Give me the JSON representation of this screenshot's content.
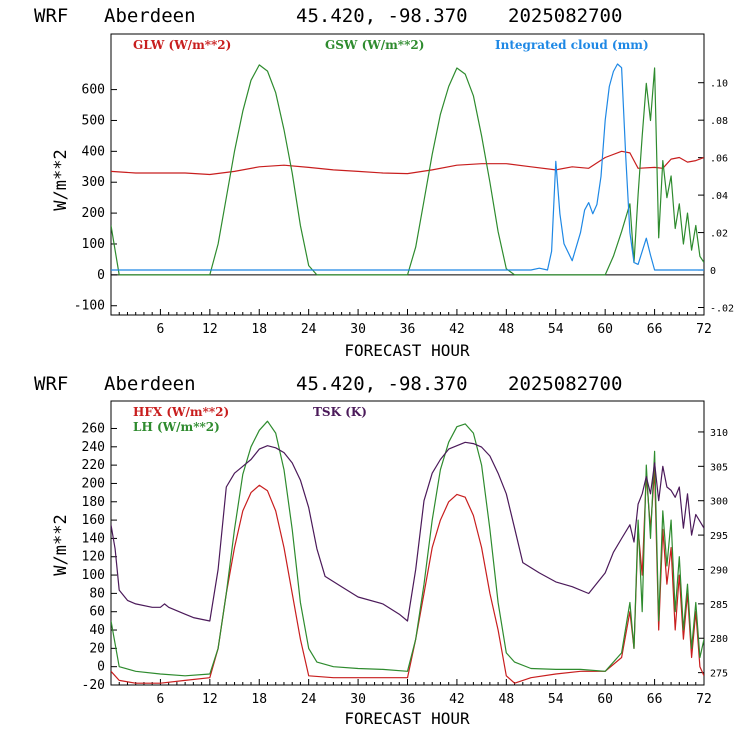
{
  "header": {
    "model": "WRF",
    "station": "Aberdeen",
    "coords": "45.420, -98.370",
    "init": "2025082700"
  },
  "colors": {
    "red": "#c81e1e",
    "green": "#2e8b2e",
    "blue": "#1e88e5",
    "purple": "#4b1a5a"
  },
  "chart_data": [
    {
      "type": "line",
      "xlabel": "FORECAST HOUR",
      "ylabel": "W/m**2",
      "xlim": [
        0,
        72
      ],
      "ylim": [
        -130,
        780
      ],
      "y2lim": [
        -0.024,
        0.126
      ],
      "xticks": [
        "6",
        "12",
        "18",
        "24",
        "30",
        "36",
        "42",
        "48",
        "54",
        "60",
        "66",
        "72"
      ],
      "yticks": [
        "-100",
        "0",
        "100",
        "200",
        "300",
        "400",
        "500",
        "600"
      ],
      "y2ticks": [
        "-.02",
        "0",
        ".02",
        ".04",
        ".06",
        ".08",
        ".10"
      ],
      "legend": [
        "GLW (W/m**2)",
        "GSW (W/m**2)",
        "Integrated cloud (mm)"
      ],
      "series": [
        {
          "name": "GLW (W/m**2)",
          "axis": "left",
          "x": [
            0,
            3,
            6,
            9,
            12,
            15,
            18,
            21,
            24,
            27,
            30,
            33,
            36,
            39,
            42,
            45,
            48,
            51,
            54,
            56,
            58,
            60,
            62,
            63,
            64,
            66,
            67,
            68,
            69,
            70,
            71,
            72
          ],
          "y": [
            335,
            330,
            330,
            330,
            325,
            335,
            350,
            355,
            348,
            340,
            335,
            330,
            328,
            340,
            355,
            360,
            360,
            350,
            340,
            350,
            345,
            380,
            400,
            395,
            345,
            348,
            345,
            375,
            380,
            365,
            370,
            380
          ]
        },
        {
          "name": "GSW (W/m**2)",
          "axis": "left",
          "x": [
            0,
            1,
            12,
            13,
            14,
            15,
            16,
            17,
            18,
            19,
            20,
            21,
            22,
            23,
            24,
            25,
            36,
            37,
            38,
            39,
            40,
            41,
            42,
            43,
            44,
            45,
            46,
            47,
            48,
            49,
            60,
            61,
            62,
            63,
            63.5,
            64,
            64.5,
            65,
            65.5,
            66,
            66.5,
            67,
            67.5,
            68,
            68.5,
            69,
            69.5,
            70,
            70.5,
            71,
            71.5,
            72
          ],
          "y": [
            160,
            0,
            0,
            100,
            250,
            400,
            530,
            630,
            680,
            660,
            590,
            470,
            330,
            160,
            30,
            0,
            0,
            90,
            240,
            390,
            520,
            610,
            670,
            650,
            580,
            450,
            300,
            140,
            20,
            0,
            0,
            60,
            140,
            230,
            40,
            260,
            450,
            620,
            500,
            670,
            120,
            370,
            250,
            320,
            150,
            230,
            100,
            200,
            80,
            160,
            60,
            40
          ]
        },
        {
          "name": "Integrated cloud (mm)",
          "axis": "right",
          "x": [
            0,
            51,
            52,
            53,
            53.5,
            54,
            54.5,
            55,
            56,
            57,
            57.5,
            58,
            58.5,
            59,
            59.5,
            60,
            60.5,
            61,
            61.5,
            62,
            62.5,
            63,
            63.5,
            64,
            64.5,
            65,
            65.5,
            66,
            72
          ],
          "y": [
            0,
            0,
            0.001,
            0,
            0.01,
            0.058,
            0.03,
            0.014,
            0.005,
            0.02,
            0.032,
            0.036,
            0.03,
            0.035,
            0.05,
            0.08,
            0.098,
            0.106,
            0.11,
            0.108,
            0.06,
            0.02,
            0.004,
            0.003,
            0.01,
            0.017,
            0.008,
            0,
            0
          ]
        }
      ]
    },
    {
      "type": "line",
      "xlabel": "FORECAST HOUR",
      "ylabel": "W/m**2",
      "xlim": [
        0,
        72
      ],
      "ylim": [
        -20,
        290
      ],
      "y2lim": [
        273.2,
        314.5
      ],
      "xticks": [
        "6",
        "12",
        "18",
        "24",
        "30",
        "36",
        "42",
        "48",
        "54",
        "60",
        "66",
        "72"
      ],
      "yticks": [
        "-20",
        "0",
        "20",
        "40",
        "60",
        "80",
        "100",
        "120",
        "140",
        "160",
        "180",
        "200",
        "220",
        "240",
        "260"
      ],
      "y2ticks": [
        "275",
        "280",
        "285",
        "290",
        "295",
        "300",
        "305",
        "310"
      ],
      "legend": [
        "HFX (W/m**2)",
        "LH  (W/m**2)",
        "TSK (K)"
      ],
      "series": [
        {
          "name": "HFX (W/m**2)",
          "axis": "left",
          "x": [
            0,
            1,
            3,
            6,
            9,
            12,
            13,
            14,
            15,
            16,
            17,
            18,
            19,
            20,
            21,
            22,
            23,
            24,
            27,
            30,
            33,
            36,
            37,
            38,
            39,
            40,
            41,
            42,
            43,
            44,
            45,
            46,
            47,
            48,
            49,
            51,
            54,
            57,
            60,
            62,
            63,
            63.5,
            64,
            64.5,
            65,
            65.5,
            66,
            66.5,
            67,
            67.5,
            68,
            68.5,
            69,
            69.5,
            70,
            70.5,
            71,
            71.5,
            72
          ],
          "y": [
            -5,
            -15,
            -18,
            -18,
            -15,
            -12,
            20,
            80,
            130,
            170,
            190,
            198,
            192,
            170,
            130,
            80,
            30,
            -10,
            -12,
            -12,
            -12,
            -12,
            30,
            80,
            130,
            160,
            180,
            188,
            185,
            165,
            130,
            80,
            40,
            -10,
            -18,
            -12,
            -8,
            -5,
            -5,
            10,
            60,
            20,
            150,
            100,
            210,
            150,
            215,
            40,
            150,
            90,
            130,
            40,
            100,
            30,
            80,
            10,
            60,
            0,
            -10
          ]
        },
        {
          "name": "LH  (W/m**2)",
          "axis": "left",
          "x": [
            0,
            1,
            3,
            6,
            9,
            12,
            13,
            14,
            15,
            16,
            17,
            18,
            19,
            20,
            21,
            22,
            23,
            24,
            25,
            27,
            30,
            33,
            36,
            37,
            38,
            39,
            40,
            41,
            42,
            43,
            44,
            45,
            46,
            47,
            48,
            49,
            51,
            54,
            57,
            60,
            62,
            63,
            63.5,
            64,
            64.5,
            65,
            65.5,
            66,
            66.5,
            67,
            67.5,
            68,
            68.5,
            69,
            69.5,
            70,
            70.5,
            71,
            71.5,
            72
          ],
          "y": [
            50,
            0,
            -5,
            -8,
            -10,
            -8,
            20,
            80,
            150,
            210,
            240,
            258,
            268,
            255,
            215,
            150,
            70,
            20,
            5,
            0,
            -2,
            -3,
            -5,
            30,
            90,
            160,
            215,
            245,
            262,
            265,
            255,
            220,
            150,
            70,
            15,
            5,
            -2,
            -3,
            -3,
            -5,
            15,
            70,
            20,
            160,
            60,
            220,
            140,
            235,
            50,
            170,
            110,
            160,
            60,
            120,
            40,
            90,
            20,
            70,
            10,
            30
          ]
        },
        {
          "name": "TSK (K)",
          "axis": "right",
          "x": [
            0,
            0.5,
            1,
            2,
            3,
            5,
            6,
            6.5,
            7,
            9,
            10,
            12,
            13,
            14,
            15,
            16,
            17,
            18,
            19,
            20,
            21,
            22,
            23,
            24,
            25,
            26,
            28,
            30,
            33,
            35,
            36,
            37,
            38,
            39,
            40,
            41,
            42,
            43,
            44,
            45,
            46,
            47,
            48,
            49,
            50,
            52,
            54,
            56,
            58,
            60,
            61,
            62,
            63,
            63.5,
            64,
            64.5,
            65,
            65.5,
            66,
            66.5,
            67,
            67.5,
            68,
            68.5,
            69,
            69.5,
            70,
            70.5,
            71,
            71.5,
            72
          ],
          "y": [
            296.5,
            293,
            287,
            285.5,
            285,
            284.5,
            284.5,
            285,
            284.5,
            283.5,
            283,
            282.5,
            290,
            302,
            304,
            305,
            306,
            307.5,
            308,
            307.7,
            307,
            305.5,
            303,
            299,
            293,
            289,
            287.5,
            286,
            285,
            283.5,
            282.5,
            290,
            300,
            304,
            306,
            307.5,
            308,
            308.5,
            308.3,
            307.8,
            306.5,
            304,
            301,
            296,
            291,
            289.5,
            288.2,
            287.5,
            286.5,
            289.5,
            292.5,
            294.5,
            296.5,
            294,
            299.5,
            301,
            303.5,
            301,
            305.5,
            300,
            305,
            302,
            301.5,
            300.5,
            302,
            296,
            301,
            295,
            298,
            297,
            296
          ]
        }
      ]
    }
  ]
}
